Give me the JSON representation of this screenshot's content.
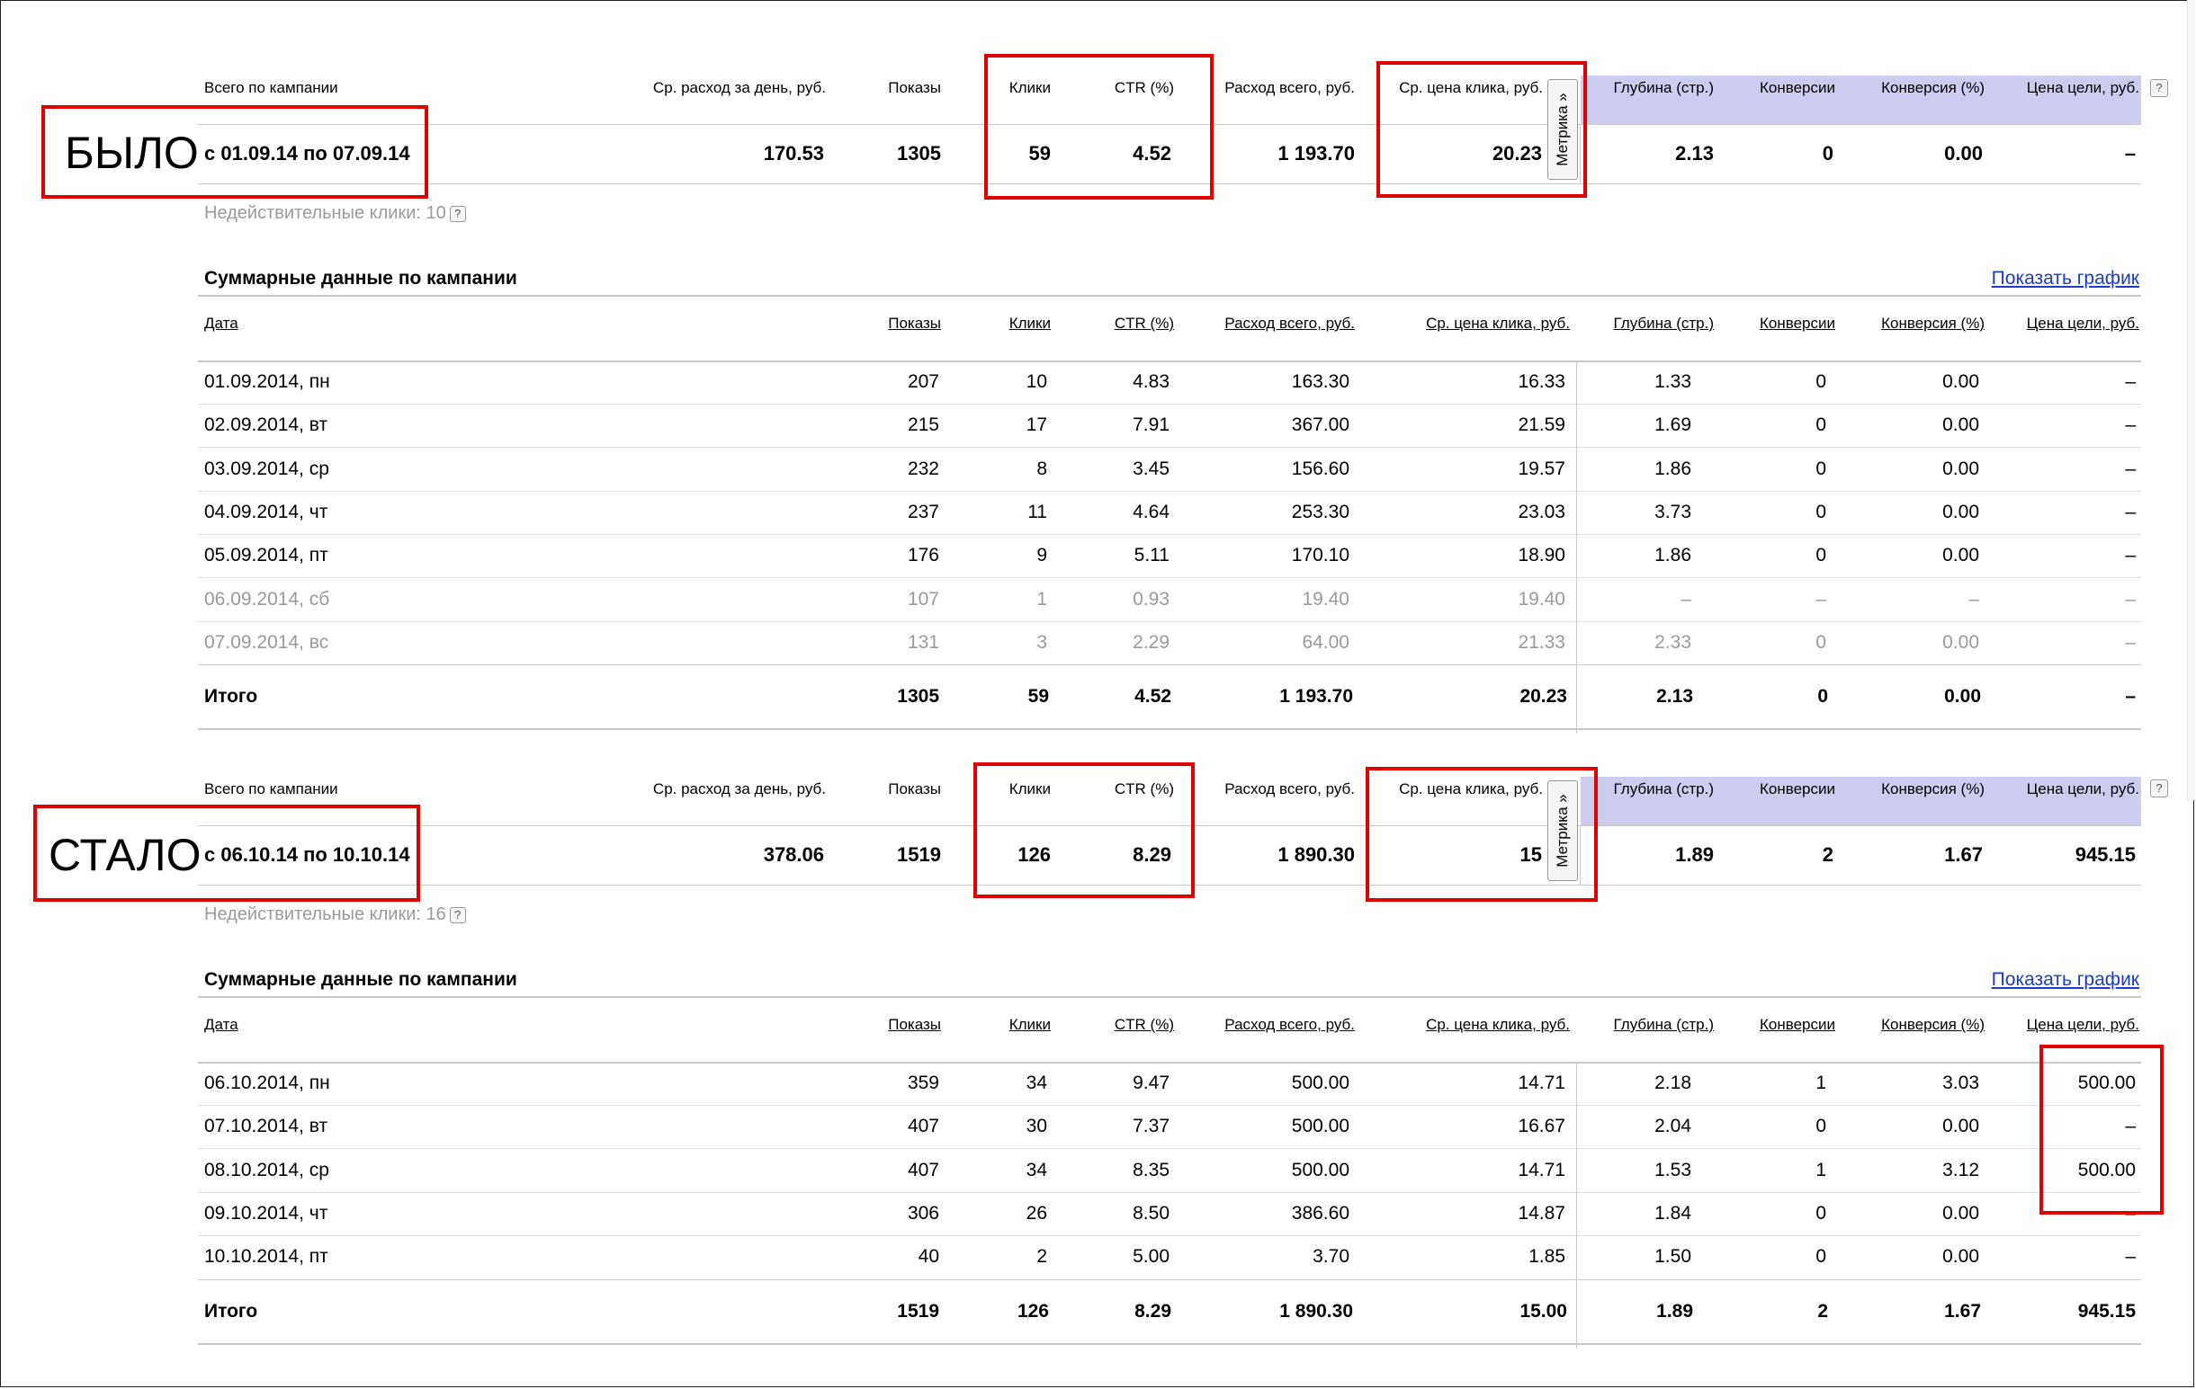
{
  "labels": {
    "before": "БЫЛО",
    "after": "СТАЛО"
  },
  "summary_headers": [
    "Всего по кампании",
    "Ср. расход за день, руб.",
    "Показы",
    "Клики",
    "CTR (%)",
    "Расход всего, руб.",
    "Ср. цена клика, руб.",
    "Глубина (стр.)",
    "Конверсии",
    "Конверсия (%)",
    "Цена цели, руб."
  ],
  "metrika_label": "Метрика »",
  "table_title": "Суммарные данные по кампании",
  "show_graph": "Показать график",
  "table_headers": [
    "Дата",
    "Показы",
    "Клики",
    "CTR (%)",
    "Расход всего, руб.",
    "Ср. цена клика, руб.",
    "Глубина (стр.)",
    "Конверсии",
    "Конверсия (%)",
    "Цена цели, руб."
  ],
  "before": {
    "period": "с 01.09.14 по 07.09.14",
    "summary": [
      "170.53",
      "1305",
      "59",
      "4.52",
      "1 193.70",
      "20.23",
      "2.13",
      "0",
      "0.00",
      "–"
    ],
    "invalid_clicks_label": "Недействительные клики:",
    "invalid_clicks": "10",
    "rows": [
      {
        "cells": [
          "01.09.2014, пн",
          "207",
          "10",
          "4.83",
          "163.30",
          "16.33",
          "1.33",
          "0",
          "0.00",
          "–"
        ],
        "dim": false
      },
      {
        "cells": [
          "02.09.2014, вт",
          "215",
          "17",
          "7.91",
          "367.00",
          "21.59",
          "1.69",
          "0",
          "0.00",
          "–"
        ],
        "dim": false
      },
      {
        "cells": [
          "03.09.2014, ср",
          "232",
          "8",
          "3.45",
          "156.60",
          "19.57",
          "1.86",
          "0",
          "0.00",
          "–"
        ],
        "dim": false
      },
      {
        "cells": [
          "04.09.2014, чт",
          "237",
          "11",
          "4.64",
          "253.30",
          "23.03",
          "3.73",
          "0",
          "0.00",
          "–"
        ],
        "dim": false
      },
      {
        "cells": [
          "05.09.2014, пт",
          "176",
          "9",
          "5.11",
          "170.10",
          "18.90",
          "1.86",
          "0",
          "0.00",
          "–"
        ],
        "dim": false
      },
      {
        "cells": [
          "06.09.2014, сб",
          "107",
          "1",
          "0.93",
          "19.40",
          "19.40",
          "–",
          "–",
          "–",
          "–"
        ],
        "dim": true
      },
      {
        "cells": [
          "07.09.2014, вс",
          "131",
          "3",
          "2.29",
          "64.00",
          "21.33",
          "2.33",
          "0",
          "0.00",
          "–"
        ],
        "dim": true
      }
    ],
    "total": [
      "Итого",
      "1305",
      "59",
      "4.52",
      "1 193.70",
      "20.23",
      "2.13",
      "0",
      "0.00",
      "–"
    ]
  },
  "after": {
    "period": "с 06.10.14 по 10.10.14",
    "summary": [
      "378.06",
      "1519",
      "126",
      "8.29",
      "1 890.30",
      "15",
      "1.89",
      "2",
      "1.67",
      "945.15"
    ],
    "invalid_clicks_label": "Недействительные клики:",
    "invalid_clicks": "16",
    "rows": [
      {
        "cells": [
          "06.10.2014, пн",
          "359",
          "34",
          "9.47",
          "500.00",
          "14.71",
          "2.18",
          "1",
          "3.03",
          "500.00"
        ],
        "dim": false
      },
      {
        "cells": [
          "07.10.2014, вт",
          "407",
          "30",
          "7.37",
          "500.00",
          "16.67",
          "2.04",
          "0",
          "0.00",
          "–"
        ],
        "dim": false
      },
      {
        "cells": [
          "08.10.2014, ср",
          "407",
          "34",
          "8.35",
          "500.00",
          "14.71",
          "1.53",
          "1",
          "3.12",
          "500.00"
        ],
        "dim": false
      },
      {
        "cells": [
          "09.10.2014, чт",
          "306",
          "26",
          "8.50",
          "386.60",
          "14.87",
          "1.84",
          "0",
          "0.00",
          "–"
        ],
        "dim": false
      },
      {
        "cells": [
          "10.10.2014, пт",
          "40",
          "2",
          "5.00",
          "3.70",
          "1.85",
          "1.50",
          "0",
          "0.00",
          "–"
        ],
        "dim": false
      }
    ],
    "total": [
      "Итого",
      "1519",
      "126",
      "8.29",
      "1 890.30",
      "15.00",
      "1.89",
      "2",
      "1.67",
      "945.15"
    ]
  },
  "help_icon": "question-icon"
}
